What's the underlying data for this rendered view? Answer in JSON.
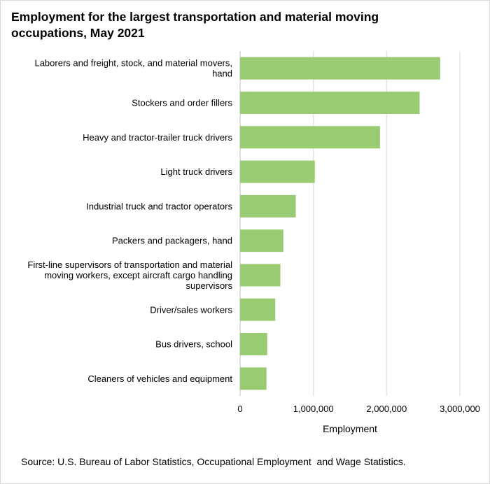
{
  "title": "Employment for the largest transportation and material moving occupations, May 2021",
  "source": "Source: U.S. Bureau of Labor Statistics, Occupational Employment  and Wage Statistics.",
  "chart_data": {
    "type": "bar",
    "orientation": "horizontal",
    "title": "Employment for the largest transportation and material moving occupations, May 2021",
    "xlabel": "Employment",
    "ylabel": "",
    "xlim": [
      0,
      3000000
    ],
    "xticks": [
      0,
      1000000,
      2000000,
      3000000
    ],
    "xtick_labels": [
      "0",
      "1,000,000",
      "2,000,000",
      "3,000,000"
    ],
    "grid": "vertical gridlines",
    "bar_color": "#99cc72",
    "categories": [
      [
        "Laborers and freight, stock, and material movers,",
        "hand"
      ],
      [
        "Stockers and order fillers"
      ],
      [
        "Heavy and tractor-trailer truck drivers"
      ],
      [
        "Light truck drivers"
      ],
      [
        "Industrial truck and tractor operators"
      ],
      [
        "Packers and packagers, hand"
      ],
      [
        "First-line supervisors of transportation and material",
        "moving workers, except aircraft cargo handling",
        "supervisors"
      ],
      [
        "Driver/sales workers"
      ],
      [
        "Bus drivers, school"
      ],
      [
        "Cleaners of vehicles and equipment"
      ]
    ],
    "values": [
      2730000,
      2450000,
      1910000,
      1020000,
      760000,
      590000,
      550000,
      480000,
      370000,
      360000
    ]
  }
}
